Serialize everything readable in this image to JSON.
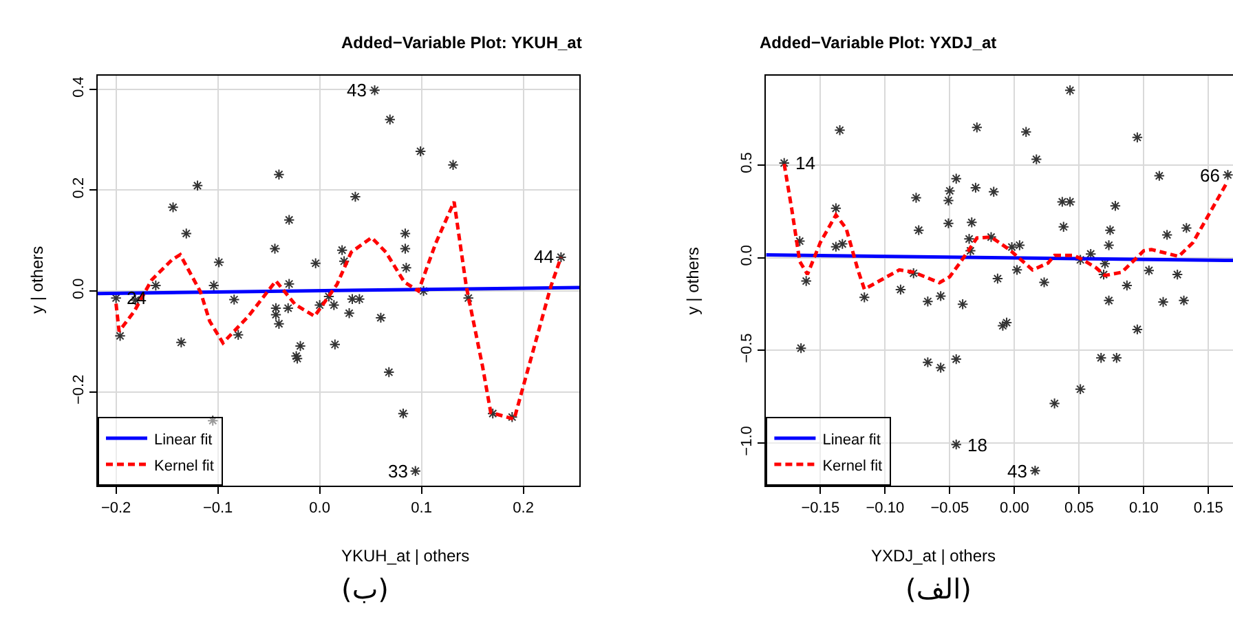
{
  "chart_data": [
    {
      "type": "scatter",
      "title": "Added−Variable Plot: YKUH_at",
      "xlabel": "YKUH_at | others",
      "ylabel": "y | others",
      "xlim": [
        -0.218,
        0.255
      ],
      "ylim": [
        -0.386,
        0.427
      ],
      "xticks": [
        {
          "value": -0.2,
          "label": "−0.2"
        },
        {
          "value": -0.1,
          "label": "−0.1"
        },
        {
          "value": 0,
          "label": "0.0"
        },
        {
          "value": 0.1,
          "label": "0.1"
        },
        {
          "value": 0.2,
          "label": "0.2"
        }
      ],
      "yticks": [
        {
          "value": -0.2,
          "label": "−0.2"
        },
        {
          "value": 0,
          "label": "0.0"
        },
        {
          "value": 0.2,
          "label": "0.2"
        },
        {
          "value": 0.4,
          "label": "0.4"
        }
      ],
      "grid": true,
      "legend": "bottom left",
      "series": [
        {
          "type": "scatter",
          "marker": "cross",
          "color": "#333333",
          "x": [
            -0.2,
            -0.181,
            -0.196,
            -0.161,
            -0.144,
            -0.131,
            -0.12,
            -0.136,
            -0.099,
            -0.104,
            -0.084,
            -0.08,
            -0.105,
            -0.044,
            -0.04,
            -0.03,
            -0.03,
            -0.043,
            -0.043,
            -0.04,
            -0.031,
            -0.023,
            -0.022,
            -0.019,
            -0.004,
            0.054,
            0.069,
            0.099,
            0.131,
            0.035,
            0.084,
            0.084,
            0.085,
            0.022,
            0.024,
            0.009,
            0.0,
            0.014,
            0.032,
            0.039,
            0.029,
            0.06,
            0.015,
            0.068,
            0.082,
            0.094,
            0.102,
            0.146,
            0.17,
            0.189,
            0.237
          ],
          "values": [
            -0.014,
            -0.018,
            -0.089,
            0.011,
            0.166,
            0.114,
            0.209,
            -0.102,
            0.057,
            0.011,
            -0.017,
            -0.087,
            -0.257,
            0.084,
            0.231,
            0.141,
            0.014,
            -0.034,
            -0.047,
            -0.065,
            -0.034,
            -0.129,
            -0.134,
            -0.109,
            0.055,
            0.398,
            0.34,
            0.277,
            0.25,
            0.187,
            0.114,
            0.084,
            0.046,
            0.081,
            0.059,
            -0.011,
            -0.028,
            -0.028,
            -0.016,
            -0.016,
            -0.044,
            -0.053,
            -0.106,
            -0.161,
            -0.243,
            -0.357,
            0.0,
            -0.014,
            -0.243,
            -0.25,
            0.067
          ]
        },
        {
          "type": "line",
          "name": "Linear fit",
          "color": "#0000ff",
          "line_style": "solid",
          "marker": "none",
          "x": [
            -0.218,
            0.255
          ],
          "values": [
            -0.005,
            0.007
          ]
        },
        {
          "type": "line",
          "name": "Kernel fit",
          "color": "#ff0000",
          "line_style": "dashed",
          "marker": "none",
          "x": [
            -0.2,
            -0.197,
            -0.182,
            -0.165,
            -0.145,
            -0.137,
            -0.117,
            -0.108,
            -0.095,
            -0.07,
            -0.043,
            -0.024,
            -0.005,
            0.017,
            0.031,
            0.051,
            0.065,
            0.083,
            0.097,
            0.114,
            0.132,
            0.144,
            0.16,
            0.168,
            0.191,
            0.209,
            0.227,
            0.237
          ],
          "values": [
            -0.025,
            -0.08,
            -0.04,
            0.022,
            0.062,
            0.072,
            -0.002,
            -0.06,
            -0.103,
            -0.05,
            0.02,
            -0.027,
            -0.05,
            0.013,
            0.077,
            0.106,
            0.077,
            0.018,
            0.0,
            0.095,
            0.177,
            0.009,
            -0.15,
            -0.241,
            -0.254,
            -0.123,
            0.009,
            0.067
          ]
        }
      ],
      "annotations": [
        {
          "text": "24",
          "x": -0.2,
          "y": -0.014
        },
        {
          "text": "43",
          "x": 0.054,
          "y": 0.398
        },
        {
          "text": "33",
          "x": 0.094,
          "y": -0.357
        },
        {
          "text": "44",
          "x": 0.237,
          "y": 0.067
        },
        "(ب)"
      ]
    },
    {
      "type": "scatter",
      "title": "Added−Variable Plot: YXDJ_at",
      "xlabel": "YXDJ_at | others",
      "ylabel": "y | others",
      "xlim": [
        -0.192,
        0.169
      ],
      "ylim": [
        -1.229,
        0.981
      ],
      "xticks": [
        {
          "value": -0.15,
          "label": "−0.15"
        },
        {
          "value": -0.1,
          "label": "−0.10"
        },
        {
          "value": -0.05,
          "label": "−0.05"
        },
        {
          "value": 0,
          "label": "0.00"
        },
        {
          "value": 0.05,
          "label": "0.05"
        },
        {
          "value": 0.1,
          "label": "0.10"
        },
        {
          "value": 0.15,
          "label": "0.15"
        }
      ],
      "yticks": [
        {
          "value": -1,
          "label": "−1.0"
        },
        {
          "value": -0.5,
          "label": "−0.5"
        },
        {
          "value": 0,
          "label": "0.0"
        },
        {
          "value": 0.5,
          "label": "0.5"
        }
      ],
      "grid": true,
      "legend": "bottom left",
      "series": [
        {
          "type": "scatter",
          "marker": "cross",
          "color": "#333333",
          "x": [
            -0.178,
            -0.166,
            -0.161,
            -0.165,
            -0.135,
            -0.138,
            -0.138,
            -0.133,
            -0.116,
            -0.088,
            -0.076,
            -0.074,
            -0.078,
            -0.067,
            -0.057,
            -0.067,
            -0.057,
            -0.045,
            -0.045,
            -0.045,
            -0.05,
            -0.051,
            -0.051,
            -0.04,
            -0.029,
            -0.03,
            -0.033,
            -0.035,
            -0.034,
            -0.016,
            -0.018,
            -0.013,
            -0.009,
            -0.006,
            -0.002,
            0.004,
            0.002,
            0.009,
            0.017,
            0.043,
            0.037,
            0.043,
            0.038,
            0.023,
            0.031,
            0.051,
            0.016,
            0.059,
            0.051,
            0.07,
            0.069,
            0.078,
            0.074,
            0.073,
            0.073,
            0.087,
            0.067,
            0.079,
            0.095,
            0.095,
            0.104,
            0.112,
            0.118,
            0.115,
            0.126,
            0.131,
            0.133,
            0.165
          ],
          "values": [
            0.51,
            0.089,
            -0.126,
            -0.488,
            0.687,
            0.266,
            0.059,
            0.074,
            -0.214,
            -0.172,
            0.323,
            0.148,
            -0.084,
            -0.236,
            -0.207,
            -0.564,
            -0.593,
            -0.547,
            -1.007,
            0.426,
            0.36,
            0.308,
            0.185,
            -0.251,
            0.702,
            0.377,
            0.19,
            0.101,
            0.037,
            0.355,
            0.111,
            -0.113,
            -0.367,
            -0.35,
            0.057,
            0.067,
            -0.066,
            0.678,
            0.53,
            0.902,
            0.301,
            0.301,
            0.166,
            -0.133,
            -0.786,
            -0.709,
            -1.148,
            0.02,
            -0.012,
            -0.032,
            -0.091,
            0.279,
            0.148,
            0.067,
            -0.231,
            -0.15,
            -0.54,
            -0.54,
            0.648,
            -0.387,
            -0.069,
            0.441,
            0.123,
            -0.239,
            -0.091,
            -0.231,
            0.16,
            0.446
          ]
        },
        {
          "type": "line",
          "name": "Linear fit",
          "color": "#0000ff",
          "line_style": "solid",
          "marker": "none",
          "x": [
            -0.192,
            0.169
          ],
          "values": [
            0.015,
            -0.015
          ]
        },
        {
          "type": "line",
          "name": "Kernel fit",
          "color": "#ff0000",
          "line_style": "dashed",
          "marker": "none",
          "x": [
            -0.178,
            -0.172,
            -0.166,
            -0.16,
            -0.15,
            -0.138,
            -0.13,
            -0.121,
            -0.116,
            -0.089,
            -0.078,
            -0.058,
            -0.05,
            -0.041,
            -0.029,
            -0.018,
            -0.004,
            0.014,
            0.026,
            0.031,
            0.046,
            0.052,
            0.063,
            0.07,
            0.083,
            0.1,
            0.106,
            0.127,
            0.138,
            0.152,
            0.164
          ],
          "values": [
            0.505,
            0.255,
            -0.02,
            -0.09,
            0.083,
            0.23,
            0.156,
            -0.066,
            -0.17,
            -0.066,
            -0.078,
            -0.135,
            -0.103,
            -0.017,
            0.106,
            0.111,
            0.044,
            -0.066,
            -0.029,
            0.012,
            0.012,
            -0.008,
            -0.054,
            -0.096,
            -0.079,
            0.037,
            0.044,
            0.007,
            0.081,
            0.253,
            0.401
          ]
        }
      ],
      "annotations": [
        {
          "text": "14",
          "x": -0.178,
          "y": 0.51
        },
        {
          "text": "18",
          "x": -0.045,
          "y": -1.007
        },
        {
          "text": "43",
          "x": 0.016,
          "y": -1.148
        },
        {
          "text": "66",
          "x": 0.165,
          "y": 0.446
        },
        "(الف)"
      ]
    }
  ]
}
